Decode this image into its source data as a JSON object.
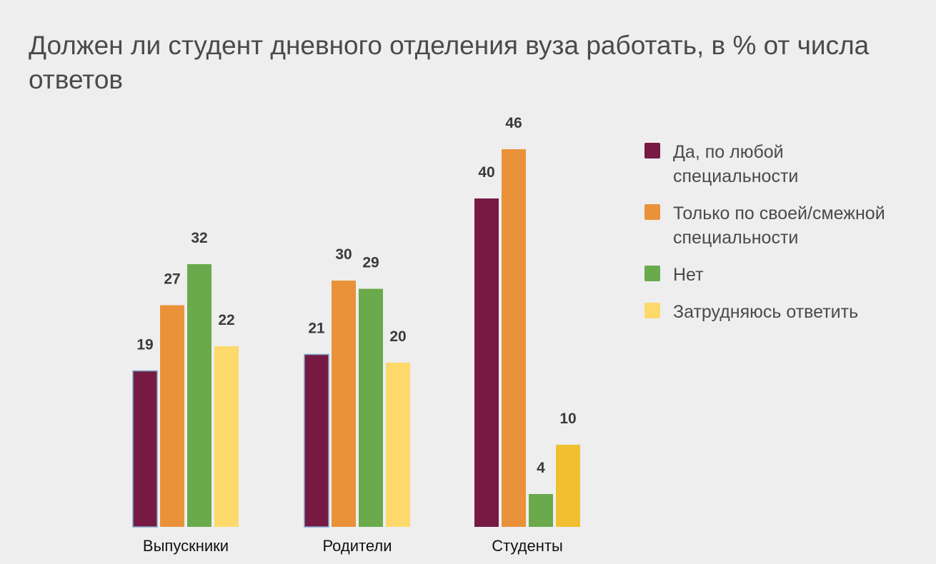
{
  "chart_data": {
    "type": "bar",
    "title": "Должен ли студент дневного отделения вуза работать, в % от числа ответов",
    "categories": [
      "Выпускники",
      "Родители",
      "Студенты"
    ],
    "series": [
      {
        "name": "Да, по любой специальности",
        "color": "#761a44",
        "values": [
          19,
          21,
          40
        ],
        "value_labels": [
          "19",
          "21",
          "40"
        ]
      },
      {
        "name": "Только по своей/смежной специальности",
        "color": "#e9923a",
        "values": [
          27,
          30,
          46
        ],
        "value_labels": [
          "27",
          "30",
          "46"
        ]
      },
      {
        "name": "Нет",
        "color": "#6aaa4c",
        "values": [
          32,
          29,
          4
        ],
        "value_labels": [
          "32",
          "29",
          "4"
        ]
      },
      {
        "name": "Затрудняюсь ответить",
        "color": "#fdd96b",
        "values": [
          22,
          20,
          10
        ],
        "value_labels": [
          "22",
          "20",
          "10"
        ]
      }
    ],
    "highlight_color": "#f0c030",
    "ylim": [
      0,
      46
    ],
    "grid": false,
    "legend": "right"
  }
}
